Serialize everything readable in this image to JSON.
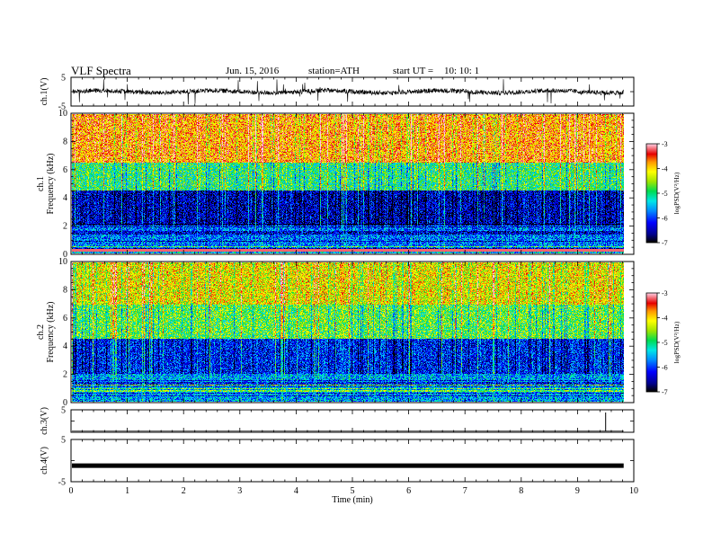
{
  "header": {
    "title": "VLF  Spectra",
    "date": "Jun. 15, 2016",
    "station": "station=ATH",
    "start_label": "start  UT  =",
    "start_time": "10: 10: 1"
  },
  "chart_data": [
    {
      "type": "line",
      "name": "ch1-waveform",
      "ylabel": "ch.1(V)",
      "ylim": [
        -5,
        5
      ],
      "yticks": [
        "5",
        "-5"
      ],
      "baseline": 0,
      "description_values": {
        "typical_band": [
          -1.5,
          1.5
        ],
        "spike_extent": [
          -4.5,
          4.5
        ]
      }
    },
    {
      "type": "heatmap",
      "name": "ch1-spectrogram",
      "ylabel_top": "ch.1",
      "ylabel": "Frequency  (kHz)",
      "ylim": [
        0,
        10
      ],
      "yticks": [
        "0",
        "2",
        "4",
        "6",
        "8",
        "10"
      ],
      "colorbar": {
        "label": "logPSD(V²/Hz)",
        "range": [
          -7,
          -3
        ],
        "ticks": [
          "-3",
          "-4",
          "-5",
          "-6",
          "-7"
        ]
      },
      "bands": [
        {
          "freq_khz": [
            0,
            0.3
          ],
          "level": -5.5
        },
        {
          "freq_khz": [
            0.3,
            2.0
          ],
          "level": -5.8
        },
        {
          "freq_khz": [
            2.0,
            4.5
          ],
          "level": -6.5
        },
        {
          "freq_khz": [
            4.5,
            6.5
          ],
          "level": -5.0
        },
        {
          "freq_khz": [
            6.5,
            10.0
          ],
          "level": -3.8
        }
      ]
    },
    {
      "type": "heatmap",
      "name": "ch2-spectrogram",
      "ylabel_top": "ch.2",
      "ylabel": "Frequency  (kHz)",
      "ylim": [
        0,
        10
      ],
      "yticks": [
        "0",
        "2",
        "4",
        "6",
        "8",
        "10"
      ],
      "colorbar": {
        "label": "logPSD(V²/Hz)",
        "range": [
          -7,
          -3
        ],
        "ticks": [
          "-3",
          "-4",
          "-5",
          "-6",
          "-7"
        ]
      },
      "bands": [
        {
          "freq_khz": [
            0,
            2.0
          ],
          "level": -5.6
        },
        {
          "freq_khz": [
            2.0,
            4.5
          ],
          "level": -6.2
        },
        {
          "freq_khz": [
            4.5,
            7.0
          ],
          "level": -4.8
        },
        {
          "freq_khz": [
            7.0,
            10.0
          ],
          "level": -4.2
        }
      ]
    },
    {
      "type": "line",
      "name": "ch3-waveform",
      "ylabel": "ch.3(V)",
      "ylim": [
        -5,
        5
      ],
      "yticks": [
        "5"
      ],
      "baseline": -4.5,
      "spike_min": 9.5
    },
    {
      "type": "line",
      "name": "ch4-waveform",
      "ylabel": "ch.4(V)",
      "ylim": [
        -5,
        5
      ],
      "yticks": [
        "5",
        "-5"
      ],
      "baseline": -1.2
    }
  ],
  "xaxis": {
    "label": "Time  (min)",
    "range": [
      0,
      10
    ],
    "ticks": [
      "0",
      "1",
      "2",
      "3",
      "4",
      "5",
      "6",
      "7",
      "8",
      "9",
      "10"
    ],
    "data_end": 9.82
  }
}
